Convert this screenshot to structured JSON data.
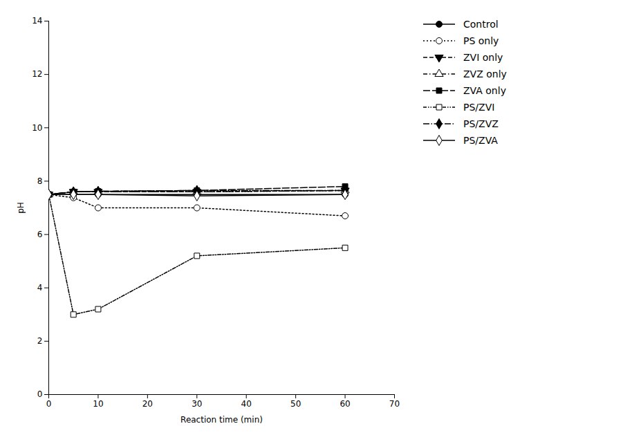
{
  "chart_data": {
    "type": "line",
    "xlabel": "Reaction time (min)",
    "ylabel": "pH",
    "x": [
      0,
      5,
      10,
      30,
      60
    ],
    "series": [
      {
        "name": "Control",
        "color": "black",
        "marker": "circle",
        "line_style": "solid",
        "values": [
          7.5,
          7.5,
          7.5,
          7.5,
          7.5
        ]
      },
      {
        "name": "PS only",
        "color": "black",
        "marker": "circle-open",
        "line_style": "dotted",
        "values": [
          7.5,
          7.38,
          7.0,
          7.0,
          6.7
        ]
      },
      {
        "name": "ZVI only",
        "color": "black",
        "marker": "triangle-down",
        "line_style": "dashed",
        "values": [
          7.5,
          7.6,
          7.6,
          7.6,
          7.65
        ]
      },
      {
        "name": "ZVZ only",
        "color": "black",
        "marker": "triangle-open",
        "line_style": "dashdot",
        "values": [
          7.5,
          7.6,
          7.6,
          7.6,
          7.65
        ]
      },
      {
        "name": "ZVA only",
        "color": "black",
        "marker": "square",
        "line_style": "longdash",
        "values": [
          7.5,
          7.6,
          7.62,
          7.65,
          7.8
        ]
      },
      {
        "name": "PS/ZVI",
        "color": "black",
        "marker": "square-open",
        "line_style": "dashdotdot",
        "values": [
          7.5,
          3.0,
          3.2,
          5.2,
          5.5
        ]
      },
      {
        "name": "PS/ZVZ",
        "color": "black",
        "marker": "diamond",
        "line_style": "longdashdot",
        "values": [
          7.5,
          7.6,
          7.62,
          7.65,
          7.65
        ]
      },
      {
        "name": "PS/ZVA",
        "color": "black",
        "marker": "diamond-open",
        "line_style": "solid",
        "values": [
          7.5,
          7.5,
          7.5,
          7.45,
          7.5
        ]
      }
    ],
    "xlim": [
      0,
      70
    ],
    "ylim": [
      0,
      14
    ],
    "xticks": [
      0,
      10,
      20,
      30,
      40,
      50,
      60,
      70
    ],
    "yticks": [
      0,
      2,
      4,
      6,
      8,
      10,
      12,
      14
    ],
    "grid": false,
    "legend": "right"
  }
}
